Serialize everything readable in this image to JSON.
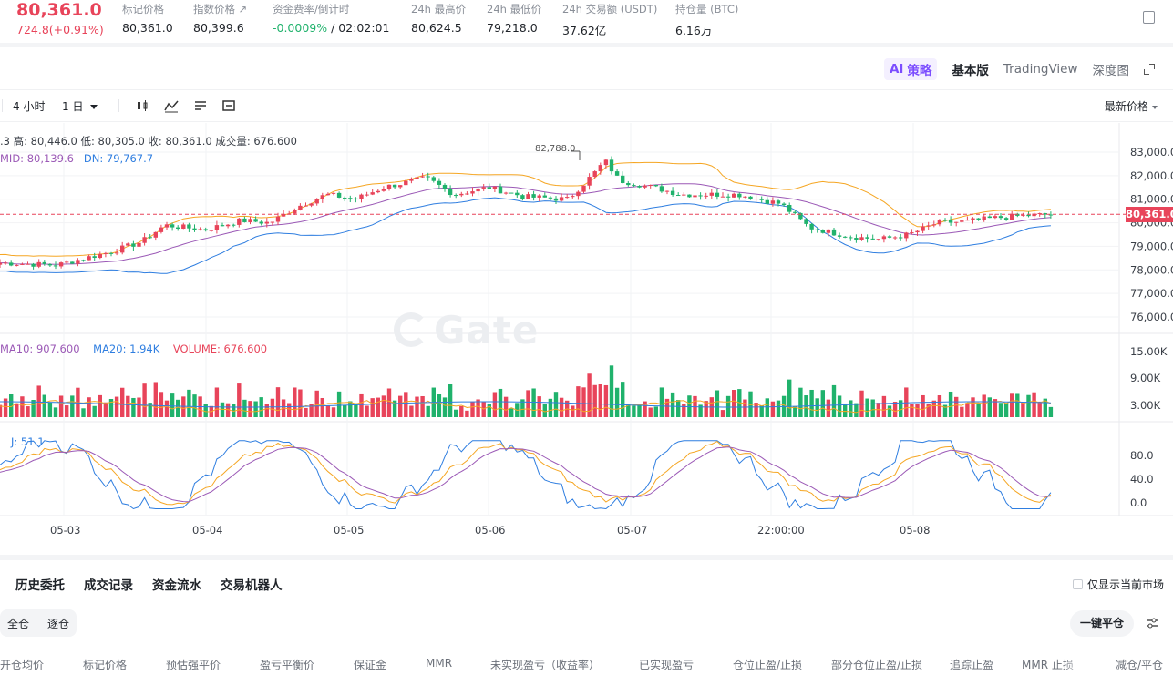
{
  "ticker": {
    "last_price": "80,361.0",
    "change": "724.8(+0.91%)",
    "stats": [
      {
        "label": "标记价格",
        "value": "80,361.0"
      },
      {
        "label": "指数价格 ↗",
        "value": "80,399.6"
      },
      {
        "label": "资金费率/倒计时",
        "value_green": "-0.0009%",
        "value": " / 02:02:01"
      },
      {
        "label": "24h 最高价",
        "value": "80,624.5"
      },
      {
        "label": "24h 最低价",
        "value": "79,218.0"
      },
      {
        "label": "24h 交易额 (USDT)",
        "value": "37.62亿"
      },
      {
        "label": "持仓量 (BTC)",
        "value": "6.16万"
      }
    ]
  },
  "chart_tabs": {
    "ai_label": "策略",
    "ai_prefix": "AI",
    "tabs": [
      "基本版",
      "TradingView",
      "深度图"
    ]
  },
  "toolbar": {
    "intervals": [
      "4 小时",
      "1 日"
    ],
    "price_type": "最新价格"
  },
  "legend": {
    "ohlc": ".3  高: 80,446.0   低: 80,305.0   收: 80,361.0   成交量: 676.600",
    "mid": "MID: 80,139.6",
    "dn": "DN: 79,767.7",
    "ma10": "MA10: 907.600",
    "ma20": "MA20: 1.94K",
    "volume": "VOLUME: 676.600",
    "j": "J: 51.1",
    "peak": "82,788.0",
    "price_tag": "80,361.0"
  },
  "watermark": "Gate",
  "colors": {
    "up": "#e8445a",
    "down": "#20b26c",
    "upper": "#f5a623",
    "mid": "#9b59b6",
    "lower": "#2f7ee0"
  },
  "chart_data": {
    "type": "candlestick",
    "y_axis_ticks": [
      "83,000.0",
      "82,000.0",
      "81,000.0",
      "80,000.0",
      "79,000.0",
      "78,000.0",
      "77,000.0",
      "76,000.0"
    ],
    "volume_axis_ticks": [
      "15.00K",
      "9.00K",
      "3.00K"
    ],
    "kdj_axis_ticks": [
      "80.0",
      "40.0",
      "0.0"
    ],
    "x_axis_labels": [
      "05-03",
      "05-04",
      "05-05",
      "05-06",
      "05-07",
      "22:00:00",
      "05-08"
    ],
    "current_price": 80361.0,
    "ylim": [
      75500,
      83600
    ]
  },
  "bottom": {
    "tabs": [
      "历史委托",
      "成交记录",
      "资金流水",
      "交易机器人"
    ],
    "only_current": "仅显示当前市场",
    "modes": [
      "全仓",
      "逐仓"
    ],
    "one_click": "一键平仓",
    "columns": [
      "开仓均价",
      "标记价格",
      "预估强平价",
      "盈亏平衡价",
      "保证金",
      "MMR",
      "未实现盈亏（收益率）",
      "已实现盈亏",
      "仓位止盈/止损",
      "部分仓位止盈/止损",
      "追踪止盈",
      "MMR 止损",
      "减仓/平仓"
    ]
  }
}
